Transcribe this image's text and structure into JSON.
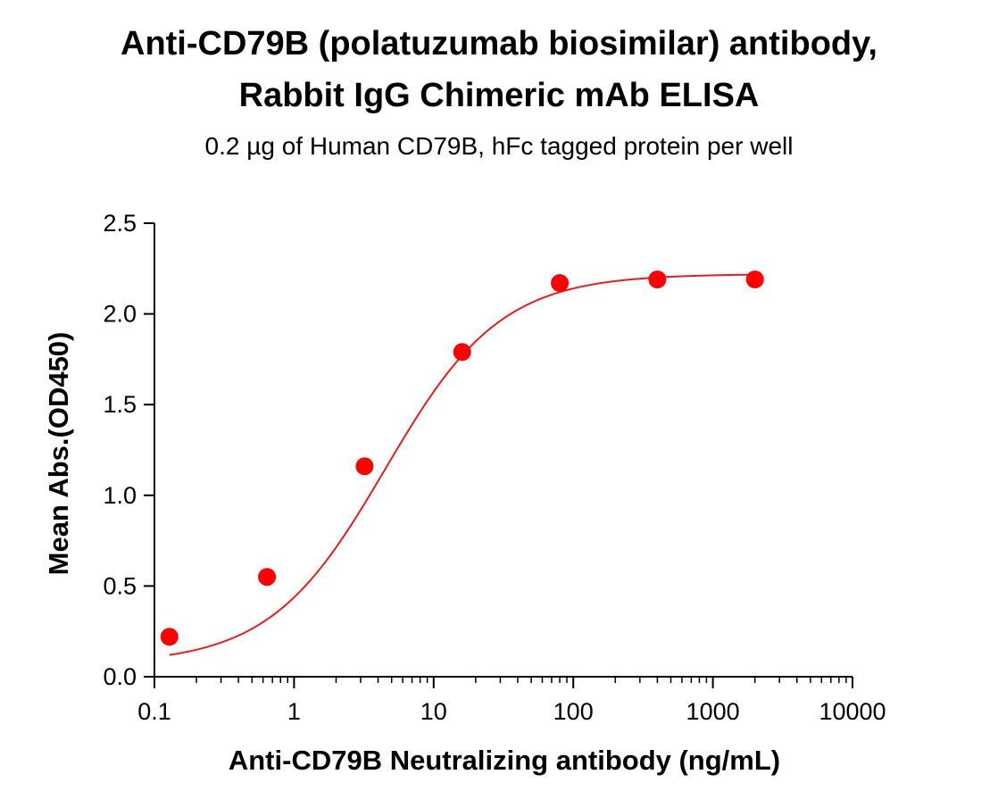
{
  "colors": {
    "series": "#ff0000",
    "curve": "#e02020",
    "axis": "#000000"
  },
  "chart_data": {
    "type": "scatter",
    "title": "Anti-CD79B (polatuzumab biosimilar) antibody,",
    "title_line2": "Rabbit IgG Chimeric mAb ELISA",
    "subtitle": "0.2 µg of Human CD79B, hFc tagged protein per well",
    "xlabel": "Anti-CD79B Neutralizing antibody (ng/mL)",
    "ylabel": "Mean Abs.(OD450)",
    "xscale": "log",
    "xlim": [
      0.1,
      10000
    ],
    "ylim": [
      0,
      2.5
    ],
    "xticks": [
      "0.1",
      "1",
      "10",
      "100",
      "1000",
      "10000"
    ],
    "yticks": [
      "0.0",
      "0.5",
      "1.0",
      "1.5",
      "2.0",
      "2.5"
    ],
    "grid": false,
    "series": [
      {
        "x": [
          0.128,
          0.64,
          3.2,
          16,
          80,
          400,
          2000
        ],
        "y": [
          0.22,
          0.55,
          1.16,
          1.79,
          2.17,
          2.19,
          2.19
        ]
      }
    ],
    "fit": {
      "model": "4PL",
      "bottom": 0.07,
      "top": 2.22,
      "ec50": 4.5,
      "hill": 1.05
    }
  }
}
